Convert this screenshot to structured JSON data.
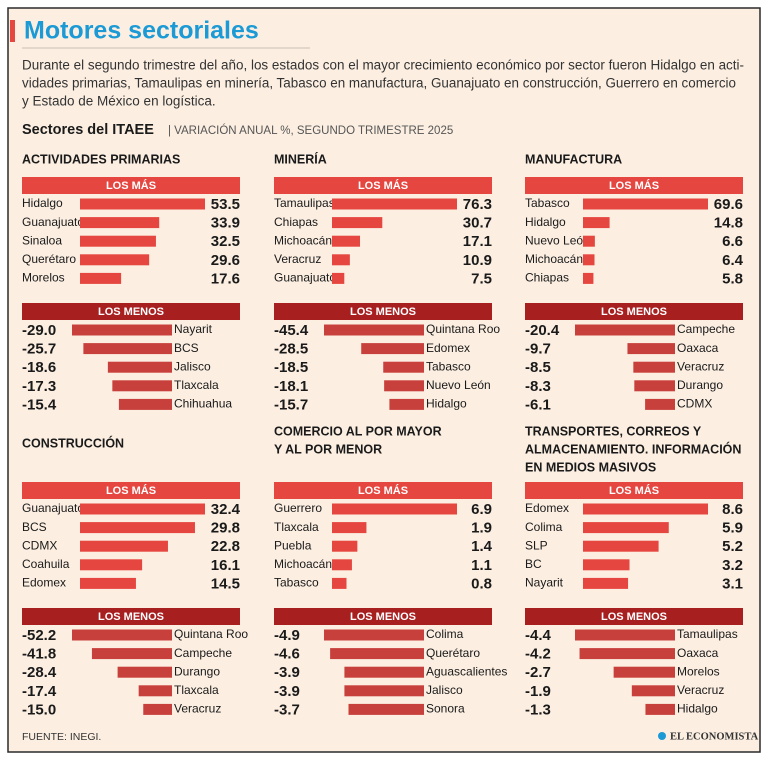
{
  "header": {
    "title": "Motores sectoriales",
    "subtitle_lines": [
      "Durante el segundo trimestre del año, los estados con el mayor crecimiento económico por sector fueron Hidalgo en acti-",
      "vidades primarias, Tamaulipas en minería, Tabasco en manufactura, Guanajuato en construcción, Guerrero en comercio",
      "y Estado de México en logística."
    ],
    "section_title": "Sectores del ITAEE",
    "section_subtitle": "| VARIACIÓN ANUAL %, SEGUNDO TRIMESTRE 2025"
  },
  "chart_data": [
    {
      "type": "bar",
      "title": [
        "ACTIVIDADES PRIMARIAS"
      ],
      "groups": [
        {
          "label": "LOS MÁS",
          "color": "#e5463f",
          "categories": [
            "Hidalgo",
            "Guanajuato",
            "Sinaloa",
            "Querétaro",
            "Morelos"
          ],
          "values": [
            53.5,
            33.9,
            32.5,
            29.6,
            17.6
          ],
          "value_labels": [
            "53.5",
            "33.9",
            "32.5",
            "29.6",
            "17.6"
          ]
        },
        {
          "label": "LOS MENOS",
          "color": "#c8403b",
          "categories": [
            "Nayarit",
            "BCS",
            "Jalisco",
            "Tlaxcala",
            "Chihuahua"
          ],
          "values": [
            -29.0,
            -25.7,
            -18.6,
            -17.3,
            -15.4
          ],
          "value_labels": [
            "-29.0",
            "-25.7",
            "-18.6",
            "-17.3",
            "-15.4"
          ]
        }
      ]
    },
    {
      "type": "bar",
      "title": [
        "MINERÍA"
      ],
      "groups": [
        {
          "label": "LOS MÁS",
          "color": "#e5463f",
          "categories": [
            "Tamaulipas",
            "Chiapas",
            "Michoacán",
            "Veracruz",
            "Guanajuato"
          ],
          "values": [
            76.3,
            30.7,
            17.1,
            10.9,
            7.5
          ],
          "value_labels": [
            "76.3",
            "30.7",
            "17.1",
            "10.9",
            "7.5"
          ]
        },
        {
          "label": "LOS MENOS",
          "color": "#c8403b",
          "categories": [
            "Quintana Roo",
            "Edomex",
            "Tabasco",
            "Nuevo León",
            "Hidalgo"
          ],
          "values": [
            -45.4,
            -28.5,
            -18.5,
            -18.1,
            -15.7
          ],
          "value_labels": [
            "-45.4",
            "-28.5",
            "-18.5",
            "-18.1",
            "-15.7"
          ]
        }
      ]
    },
    {
      "type": "bar",
      "title": [
        "MANUFACTURA"
      ],
      "groups": [
        {
          "label": "LOS MÁS",
          "color": "#e5463f",
          "categories": [
            "Tabasco",
            "Hidalgo",
            "Nuevo León",
            "Michoacán",
            "Chiapas"
          ],
          "values": [
            69.6,
            14.8,
            6.6,
            6.4,
            5.8
          ],
          "value_labels": [
            "69.6",
            "14.8",
            "6.6",
            "6.4",
            "5.8"
          ]
        },
        {
          "label": "LOS MENOS",
          "color": "#c8403b",
          "categories": [
            "Campeche",
            "Oaxaca",
            "Veracruz",
            "Durango",
            "CDMX"
          ],
          "values": [
            -20.4,
            -9.7,
            -8.5,
            -8.3,
            -6.1
          ],
          "value_labels": [
            "-20.4",
            "-9.7",
            "-8.5",
            "-8.3",
            "-6.1"
          ]
        }
      ]
    },
    {
      "type": "bar",
      "title": [
        "CONSTRUCCIÓN"
      ],
      "groups": [
        {
          "label": "LOS MÁS",
          "color": "#e5463f",
          "categories": [
            "Guanajuato",
            "BCS",
            "CDMX",
            "Coahuila",
            "Edomex"
          ],
          "values": [
            32.4,
            29.8,
            22.8,
            16.1,
            14.5
          ],
          "value_labels": [
            "32.4",
            "29.8",
            "22.8",
            "16.1",
            "14.5"
          ]
        },
        {
          "label": "LOS MENOS",
          "color": "#c8403b",
          "categories": [
            "Quintana Roo",
            "Campeche",
            "Durango",
            "Tlaxcala",
            "Veracruz"
          ],
          "values": [
            -52.2,
            -41.8,
            -28.4,
            -17.4,
            -15.0
          ],
          "value_labels": [
            "-52.2",
            "-41.8",
            "-28.4",
            "-17.4",
            "-15.0"
          ]
        }
      ]
    },
    {
      "type": "bar",
      "title": [
        "COMERCIO AL POR MAYOR",
        "Y AL POR MENOR"
      ],
      "groups": [
        {
          "label": "LOS MÁS",
          "color": "#e5463f",
          "categories": [
            "Guerrero",
            "Tlaxcala",
            "Puebla",
            "Michoacán",
            "Tabasco"
          ],
          "values": [
            6.9,
            1.9,
            1.4,
            1.1,
            0.8
          ],
          "value_labels": [
            "6.9",
            "1.9",
            "1.4",
            "1.1",
            "0.8"
          ]
        },
        {
          "label": "LOS MENOS",
          "color": "#c8403b",
          "categories": [
            "Colima",
            "Querétaro",
            "Aguascalientes",
            "Jalisco",
            "Sonora"
          ],
          "values": [
            -4.9,
            -4.6,
            -3.9,
            -3.9,
            -3.7
          ],
          "value_labels": [
            "-4.9",
            "-4.6",
            "-3.9",
            "-3.9",
            "-3.7"
          ]
        }
      ]
    },
    {
      "type": "bar",
      "title": [
        "TRANSPORTES, CORREOS Y",
        "ALMACENAMIENTO. INFORMACIÓN",
        "EN MEDIOS MASIVOS"
      ],
      "groups": [
        {
          "label": "LOS MÁS",
          "color": "#e5463f",
          "categories": [
            "Edomex",
            "Colima",
            "SLP",
            "BC",
            "Nayarit"
          ],
          "values": [
            8.6,
            5.9,
            5.2,
            3.2,
            3.1
          ],
          "value_labels": [
            "8.6",
            "5.9",
            "5.2",
            "3.2",
            "3.1"
          ]
        },
        {
          "label": "LOS MENOS",
          "color": "#c8403b",
          "categories": [
            "Tamaulipas",
            "Oaxaca",
            "Morelos",
            "Veracruz",
            "Hidalgo"
          ],
          "values": [
            -4.4,
            -4.2,
            -2.7,
            -1.9,
            -1.3
          ],
          "value_labels": [
            "-4.4",
            "-4.2",
            "-2.7",
            "-1.9",
            "-1.3"
          ]
        }
      ]
    }
  ],
  "footer": {
    "source": "FUENTE: INEGI.",
    "brand": "EL ECONOMISTA"
  }
}
